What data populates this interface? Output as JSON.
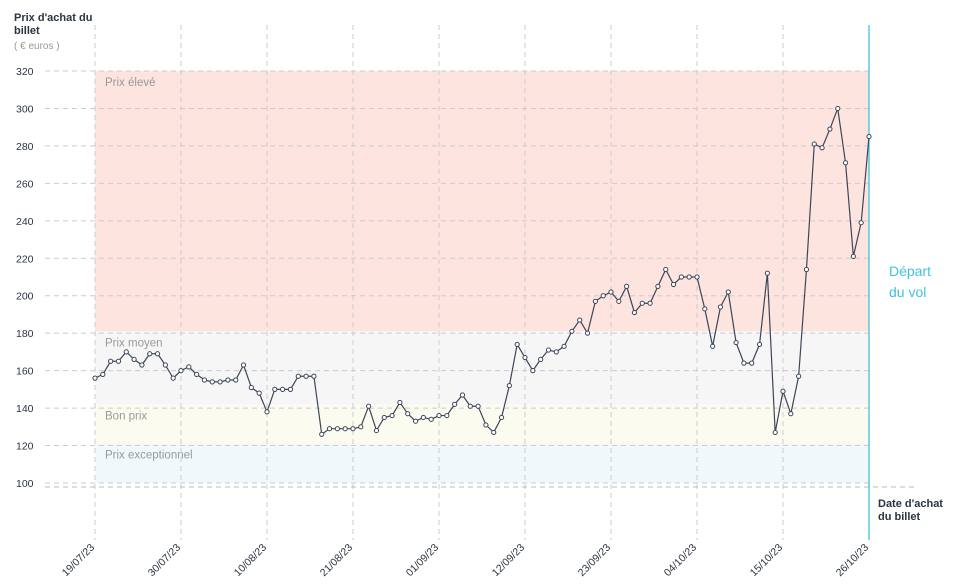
{
  "chart_data": {
    "type": "line",
    "y_title": "Prix d'achat du billet",
    "y_unit": "( € euros )",
    "x_title": "Date d'achat du billet",
    "x": [
      "19/07/23",
      "20/07/23",
      "21/07/23",
      "22/07/23",
      "23/07/23",
      "24/07/23",
      "25/07/23",
      "26/07/23",
      "27/07/23",
      "28/07/23",
      "29/07/23",
      "30/07/23",
      "31/07/23",
      "01/08/23",
      "02/08/23",
      "03/08/23",
      "04/08/23",
      "05/08/23",
      "06/08/23",
      "07/08/23",
      "08/08/23",
      "09/08/23",
      "10/08/23",
      "11/08/23",
      "12/08/23",
      "13/08/23",
      "14/08/23",
      "15/08/23",
      "16/08/23",
      "17/08/23",
      "18/08/23",
      "19/08/23",
      "20/08/23",
      "21/08/23",
      "22/08/23",
      "23/08/23",
      "24/08/23",
      "25/08/23",
      "26/08/23",
      "27/08/23",
      "28/08/23",
      "29/08/23",
      "30/08/23",
      "31/08/23",
      "01/09/23",
      "02/09/23",
      "03/09/23",
      "04/09/23",
      "05/09/23",
      "06/09/23",
      "07/09/23",
      "08/09/23",
      "09/09/23",
      "10/09/23",
      "11/09/23",
      "12/09/23",
      "13/09/23",
      "14/09/23",
      "15/09/23",
      "16/09/23",
      "17/09/23",
      "18/09/23",
      "19/09/23",
      "20/09/23",
      "21/09/23",
      "22/09/23",
      "23/09/23",
      "24/09/23",
      "25/09/23",
      "26/09/23",
      "27/09/23",
      "28/09/23",
      "29/09/23",
      "30/09/23",
      "01/10/23",
      "02/10/23",
      "03/10/23",
      "04/10/23",
      "05/10/23",
      "06/10/23",
      "07/10/23",
      "08/10/23",
      "09/10/23",
      "10/10/23",
      "11/10/23",
      "12/10/23",
      "13/10/23",
      "14/10/23",
      "15/10/23",
      "16/10/23",
      "17/10/23",
      "18/10/23",
      "19/10/23",
      "20/10/23",
      "21/10/23",
      "22/10/23",
      "23/10/23",
      "24/10/23",
      "25/10/23",
      "26/10/23"
    ],
    "series": [
      {
        "name": "Prix",
        "color": "#3c4658",
        "values": [
          156,
          158,
          165,
          165,
          170,
          166,
          163,
          169,
          169,
          163,
          156,
          160,
          162,
          158,
          155,
          154,
          154,
          155,
          155,
          163,
          151,
          148,
          138,
          150,
          150,
          150,
          157,
          157,
          157,
          126,
          129,
          129,
          129,
          129,
          130,
          141,
          128,
          135,
          136,
          143,
          137,
          133,
          135,
          134,
          136,
          136,
          142,
          147,
          141,
          141,
          131,
          127,
          135,
          152,
          174,
          167,
          160,
          166,
          171,
          170,
          173,
          181,
          187,
          180,
          197,
          200,
          202,
          197,
          205,
          191,
          196,
          196,
          205,
          214,
          206,
          210,
          210,
          210,
          193,
          173,
          194,
          202,
          175,
          164,
          164,
          174,
          212,
          127,
          149,
          137,
          157,
          214,
          281,
          279,
          289,
          300,
          271,
          221,
          239,
          285
        ]
      }
    ],
    "ylim": [
      100,
      320
    ],
    "yticks": [
      100,
      120,
      140,
      160,
      180,
      200,
      220,
      240,
      260,
      280,
      300,
      320
    ],
    "xlim": [
      "19/07/23",
      "26/10/23"
    ],
    "xticks": [
      "19/07/23",
      "30/07/23",
      "10/08/23",
      "21/08/23",
      "01/09/23",
      "12/09/23",
      "23/09/23",
      "04/10/23",
      "15/10/23",
      "26/10/23"
    ],
    "grid": true,
    "bands": [
      {
        "label": "Prix élevé",
        "from": 181,
        "to": 320,
        "color": "#fde4de"
      },
      {
        "label": "Prix moyen",
        "from": 142,
        "to": 181,
        "color": "#f6f6f6"
      },
      {
        "label": "Bon prix",
        "from": 121,
        "to": 142,
        "color": "#fbfbef"
      },
      {
        "label": "Prix exceptionnel",
        "from": 100,
        "to": 121,
        "color": "#f1f8fc"
      }
    ],
    "event": {
      "x": "26/10/23",
      "label": "Départ du vol",
      "color": "#3fc3dd"
    }
  }
}
